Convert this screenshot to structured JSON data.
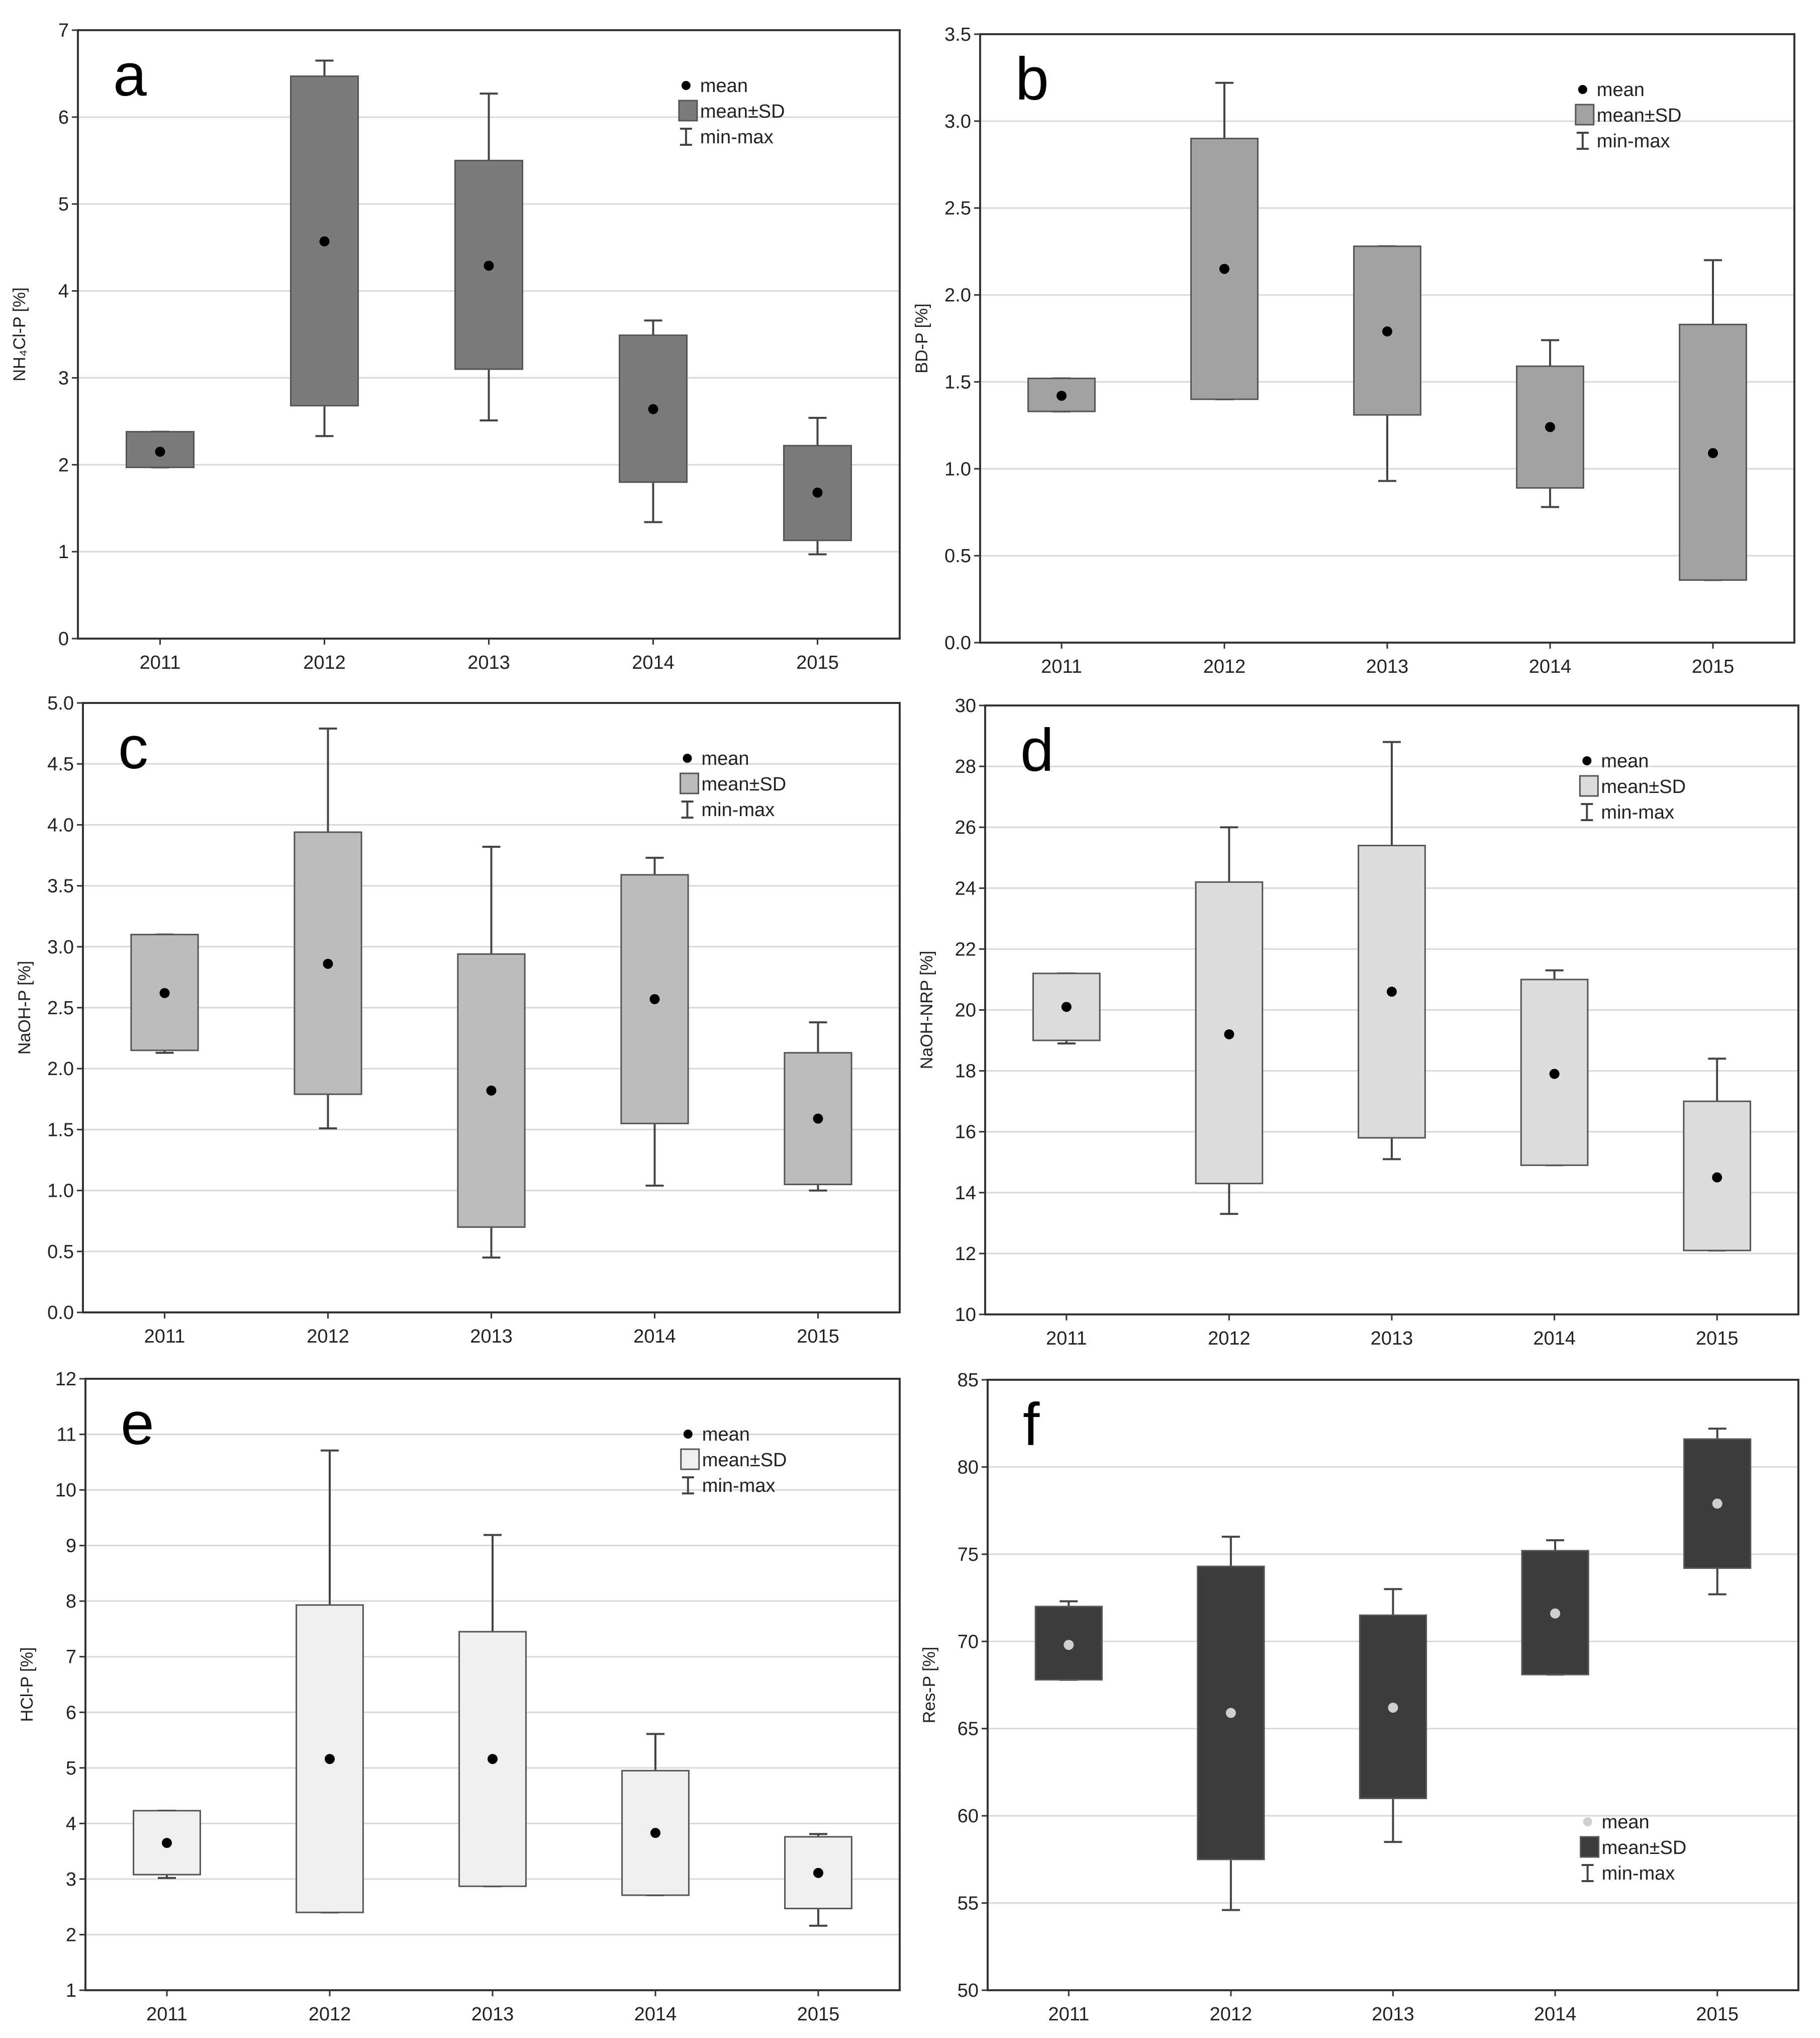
{
  "figure_title": "",
  "chart_data": [
    {
      "panel": "a",
      "type": "box",
      "ylabel": "NH₄Cl-P [%]",
      "ylim": [
        0,
        7
      ],
      "yticks": [
        0,
        1,
        2,
        3,
        4,
        5,
        6,
        7
      ],
      "ytick_labels": [
        "0",
        "1",
        "2",
        "3",
        "4",
        "5",
        "6",
        "7"
      ],
      "categories": [
        "2011",
        "2012",
        "2013",
        "2014",
        "2015"
      ],
      "series": [
        {
          "name": "2011",
          "mean": 2.15,
          "sd_low": 1.97,
          "sd_high": 2.38,
          "min": 1.97,
          "max": 2.38
        },
        {
          "name": "2012",
          "mean": 4.57,
          "sd_low": 2.68,
          "sd_high": 6.47,
          "min": 2.33,
          "max": 6.65
        },
        {
          "name": "2013",
          "mean": 4.29,
          "sd_low": 3.1,
          "sd_high": 5.5,
          "min": 2.51,
          "max": 6.27
        },
        {
          "name": "2014",
          "mean": 2.64,
          "sd_low": 1.8,
          "sd_high": 3.49,
          "min": 1.34,
          "max": 3.66
        },
        {
          "name": "2015",
          "mean": 1.68,
          "sd_low": 1.13,
          "sd_high": 2.22,
          "min": 0.97,
          "max": 2.54
        }
      ],
      "box_color": "#7b7b7b",
      "mean_color": "#000000",
      "legend": {
        "position": "top-right",
        "mean": "mean",
        "sd": "mean±SD",
        "range": "min-max"
      }
    },
    {
      "panel": "b",
      "type": "box",
      "ylabel": "BD-P [%]",
      "ylim": [
        0,
        3.5
      ],
      "yticks": [
        0,
        0.5,
        1,
        1.5,
        2,
        2.5,
        3,
        3.5
      ],
      "ytick_labels": [
        "0.0",
        "0.5",
        "1.0",
        "1.5",
        "2.0",
        "2.5",
        "3.0",
        "3.5"
      ],
      "categories": [
        "2011",
        "2012",
        "2013",
        "2014",
        "2015"
      ],
      "series": [
        {
          "name": "2011",
          "mean": 1.42,
          "sd_low": 1.33,
          "sd_high": 1.52,
          "min": 1.33,
          "max": 1.52
        },
        {
          "name": "2012",
          "mean": 2.15,
          "sd_low": 1.4,
          "sd_high": 2.9,
          "min": 1.4,
          "max": 3.22
        },
        {
          "name": "2013",
          "mean": 1.79,
          "sd_low": 1.31,
          "sd_high": 2.28,
          "min": 0.93,
          "max": 2.28
        },
        {
          "name": "2014",
          "mean": 1.24,
          "sd_low": 0.89,
          "sd_high": 1.59,
          "min": 0.78,
          "max": 1.74
        },
        {
          "name": "2015",
          "mean": 1.09,
          "sd_low": 0.36,
          "sd_high": 1.83,
          "min": 0.36,
          "max": 2.2
        }
      ],
      "box_color": "#a2a2a2",
      "mean_color": "#000000",
      "legend": {
        "position": "top-right",
        "mean": "mean",
        "sd": "mean±SD",
        "range": "min-max"
      }
    },
    {
      "panel": "c",
      "type": "box",
      "ylabel": "NaOH-P [%]",
      "ylim": [
        0,
        5
      ],
      "yticks": [
        0,
        0.5,
        1,
        1.5,
        2,
        2.5,
        3,
        3.5,
        4,
        4.5,
        5
      ],
      "ytick_labels": [
        "0.0",
        "0.5",
        "1.0",
        "1.5",
        "2.0",
        "2.5",
        "3.0",
        "3.5",
        "4.0",
        "4.5",
        "5.0"
      ],
      "categories": [
        "2011",
        "2012",
        "2013",
        "2014",
        "2015"
      ],
      "series": [
        {
          "name": "2011",
          "mean": 2.62,
          "sd_low": 2.15,
          "sd_high": 3.1,
          "min": 2.13,
          "max": 3.1
        },
        {
          "name": "2012",
          "mean": 2.86,
          "sd_low": 1.79,
          "sd_high": 3.94,
          "min": 1.51,
          "max": 4.79
        },
        {
          "name": "2013",
          "mean": 1.82,
          "sd_low": 0.7,
          "sd_high": 2.94,
          "min": 0.45,
          "max": 3.82
        },
        {
          "name": "2014",
          "mean": 2.57,
          "sd_low": 1.55,
          "sd_high": 3.59,
          "min": 1.04,
          "max": 3.73
        },
        {
          "name": "2015",
          "mean": 1.59,
          "sd_low": 1.05,
          "sd_high": 2.13,
          "min": 1.0,
          "max": 2.38
        }
      ],
      "box_color": "#bcbcbc",
      "mean_color": "#000000",
      "legend": {
        "position": "top-right",
        "mean": "mean",
        "sd": "mean±SD",
        "range": "min-max"
      }
    },
    {
      "panel": "d",
      "type": "box",
      "ylabel": "NaOH-NRP [%]",
      "ylim": [
        10,
        30
      ],
      "yticks": [
        10,
        12,
        14,
        16,
        18,
        20,
        22,
        24,
        26,
        28,
        30
      ],
      "ytick_labels": [
        "10",
        "12",
        "14",
        "16",
        "18",
        "20",
        "22",
        "24",
        "26",
        "28",
        "30"
      ],
      "categories": [
        "2011",
        "2012",
        "2013",
        "2014",
        "2015"
      ],
      "series": [
        {
          "name": "2011",
          "mean": 20.1,
          "sd_low": 19.0,
          "sd_high": 21.2,
          "min": 18.9,
          "max": 21.2
        },
        {
          "name": "2012",
          "mean": 19.2,
          "sd_low": 14.3,
          "sd_high": 24.2,
          "min": 13.3,
          "max": 26.0
        },
        {
          "name": "2013",
          "mean": 20.6,
          "sd_low": 15.8,
          "sd_high": 25.4,
          "min": 15.1,
          "max": 28.8
        },
        {
          "name": "2014",
          "mean": 17.9,
          "sd_low": 14.9,
          "sd_high": 21.0,
          "min": 14.9,
          "max": 21.3
        },
        {
          "name": "2015",
          "mean": 14.5,
          "sd_low": 12.1,
          "sd_high": 17.0,
          "min": 12.1,
          "max": 18.4
        }
      ],
      "box_color": "#dcdcdc",
      "mean_color": "#000000",
      "legend": {
        "position": "top-right",
        "mean": "mean",
        "sd": "mean±SD",
        "range": "min-max"
      }
    },
    {
      "panel": "e",
      "type": "box",
      "ylabel": "HCl-P [%]",
      "ylim": [
        1,
        12
      ],
      "yticks": [
        1,
        2,
        3,
        4,
        5,
        6,
        7,
        8,
        9,
        10,
        11,
        12
      ],
      "ytick_labels": [
        "1",
        "2",
        "3",
        "4",
        "5",
        "6",
        "7",
        "8",
        "9",
        "10",
        "11",
        "12"
      ],
      "categories": [
        "2011",
        "2012",
        "2013",
        "2014",
        "2015"
      ],
      "series": [
        {
          "name": "2011",
          "mean": 3.65,
          "sd_low": 3.08,
          "sd_high": 4.23,
          "min": 3.02,
          "max": 4.23
        },
        {
          "name": "2012",
          "mean": 5.16,
          "sd_low": 2.4,
          "sd_high": 7.93,
          "min": 2.4,
          "max": 10.71
        },
        {
          "name": "2013",
          "mean": 5.16,
          "sd_low": 2.87,
          "sd_high": 7.45,
          "min": 2.87,
          "max": 9.19
        },
        {
          "name": "2014",
          "mean": 3.83,
          "sd_low": 2.71,
          "sd_high": 4.95,
          "min": 2.71,
          "max": 5.61
        },
        {
          "name": "2015",
          "mean": 3.11,
          "sd_low": 2.47,
          "sd_high": 3.76,
          "min": 2.16,
          "max": 3.81
        }
      ],
      "box_color": "#efefef",
      "mean_color": "#000000",
      "legend": {
        "position": "top-right",
        "mean": "mean",
        "sd": "mean±SD",
        "range": "min-max"
      }
    },
    {
      "panel": "f",
      "type": "box",
      "ylabel": "Res-P [%]",
      "ylim": [
        50,
        85
      ],
      "yticks": [
        50,
        55,
        60,
        65,
        70,
        75,
        80,
        85
      ],
      "ytick_labels": [
        "50",
        "55",
        "60",
        "65",
        "70",
        "75",
        "80",
        "85"
      ],
      "categories": [
        "2011",
        "2012",
        "2013",
        "2014",
        "2015"
      ],
      "series": [
        {
          "name": "2011",
          "mean": 69.8,
          "sd_low": 67.8,
          "sd_high": 72.0,
          "min": 67.8,
          "max": 72.3
        },
        {
          "name": "2012",
          "mean": 65.9,
          "sd_low": 57.5,
          "sd_high": 74.3,
          "min": 54.6,
          "max": 76.0
        },
        {
          "name": "2013",
          "mean": 66.2,
          "sd_low": 61.0,
          "sd_high": 71.5,
          "min": 58.5,
          "max": 73.0
        },
        {
          "name": "2014",
          "mean": 71.6,
          "sd_low": 68.1,
          "sd_high": 75.2,
          "min": 68.1,
          "max": 75.8
        },
        {
          "name": "2015",
          "mean": 77.9,
          "sd_low": 74.2,
          "sd_high": 81.6,
          "min": 72.7,
          "max": 82.2
        }
      ],
      "box_color": "#3c3c3c",
      "mean_color": "#cfcfcf",
      "legend": {
        "position": "bottom-right",
        "mean": "mean",
        "sd": "mean±SD",
        "range": "min-max"
      }
    }
  ]
}
